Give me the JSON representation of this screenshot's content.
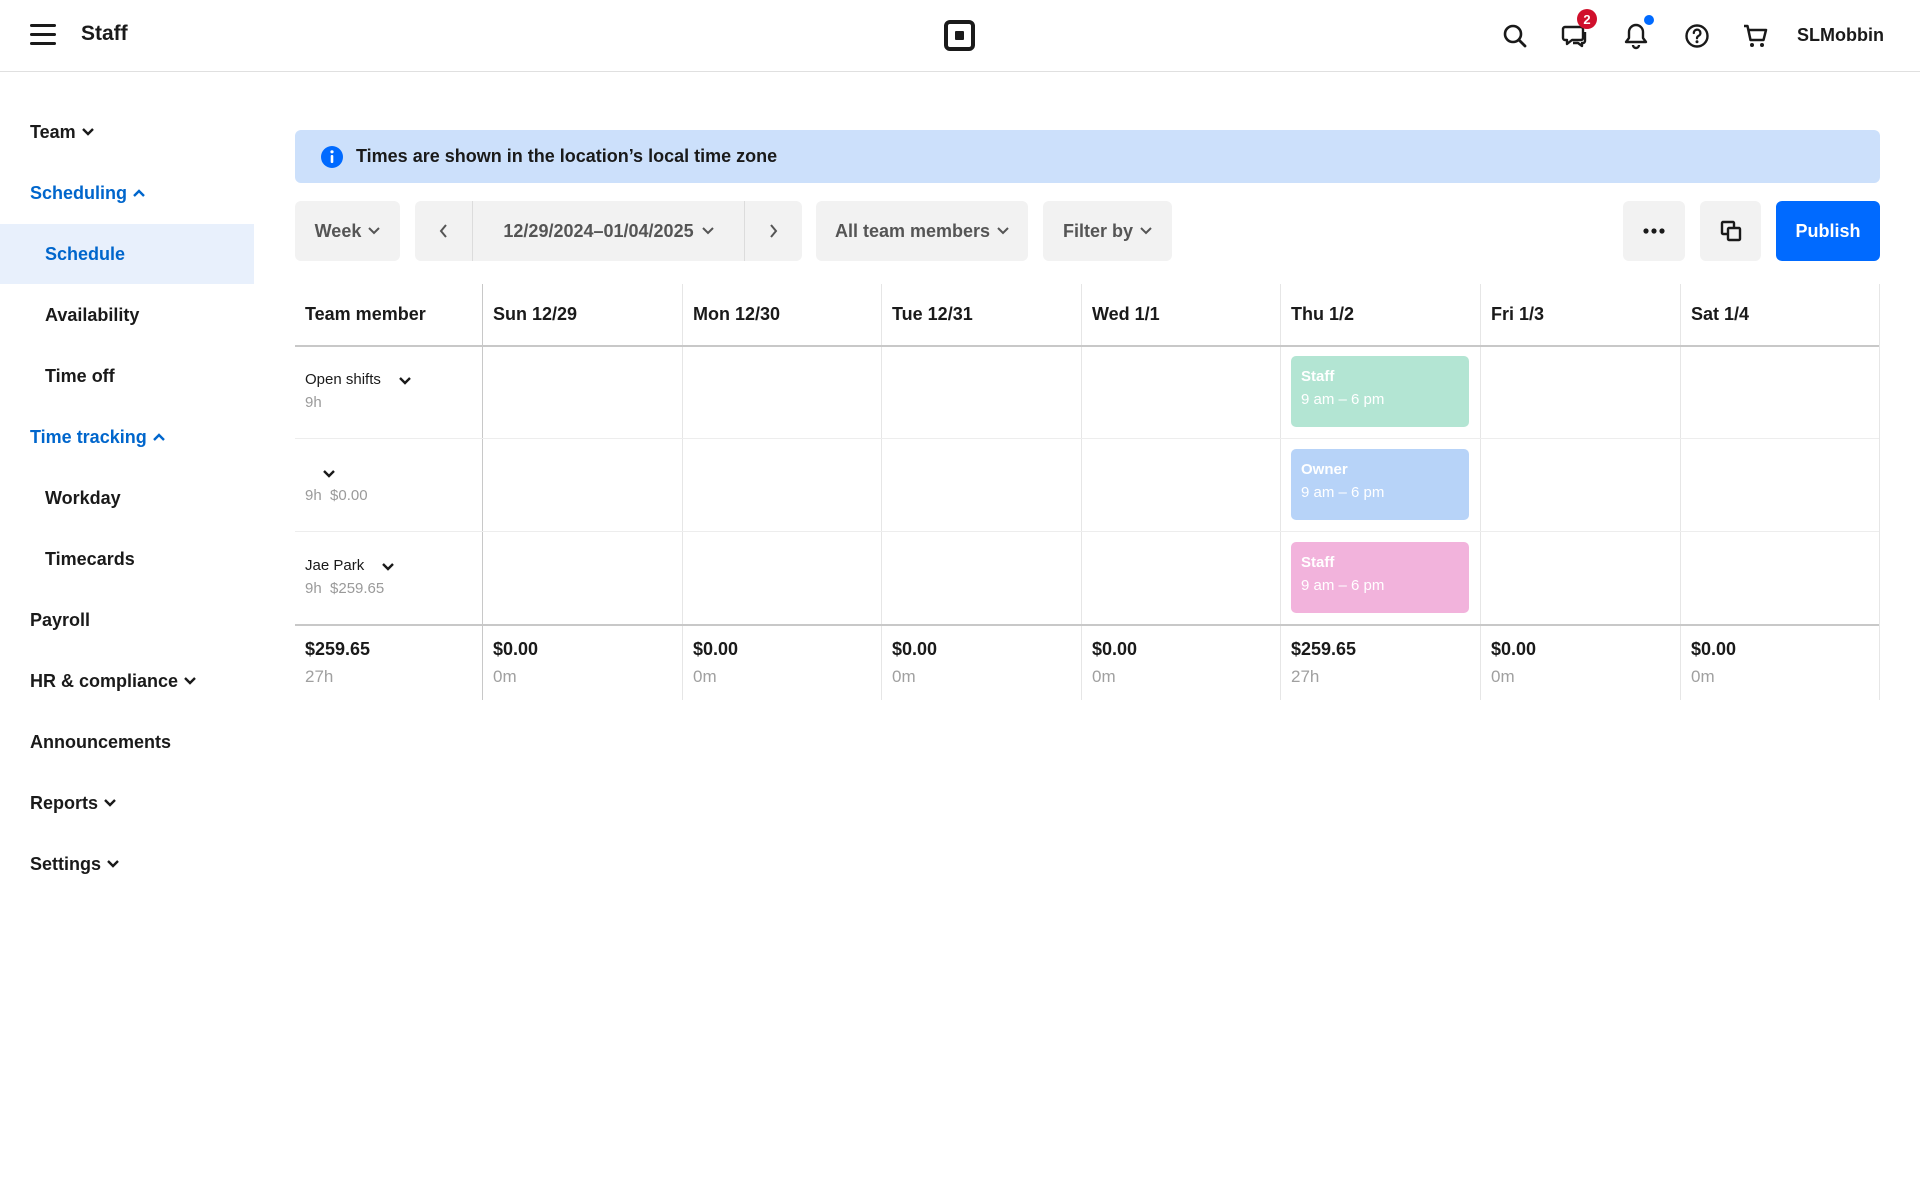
{
  "header": {
    "title": "Staff",
    "username": "SLMobbin",
    "icons": [
      "menu-icon",
      "square-logo-icon",
      "search-icon",
      "messages-icon",
      "bell-icon",
      "help-icon",
      "cart-icon"
    ],
    "messages_badge": "2"
  },
  "sidebar": {
    "items": [
      {
        "label": "Team",
        "kind": "top",
        "chevron": "down"
      },
      {
        "label": "Scheduling",
        "kind": "section-open",
        "chevron": "up"
      },
      {
        "label": "Schedule",
        "kind": "sub",
        "active": true
      },
      {
        "label": "Availability",
        "kind": "sub"
      },
      {
        "label": "Time off",
        "kind": "sub"
      },
      {
        "label": "Time tracking",
        "kind": "section-open",
        "chevron": "up"
      },
      {
        "label": "Workday",
        "kind": "sub"
      },
      {
        "label": "Timecards",
        "kind": "sub"
      },
      {
        "label": "Payroll",
        "kind": "top"
      },
      {
        "label": "HR & compliance",
        "kind": "top",
        "chevron": "down"
      },
      {
        "label": "Announcements",
        "kind": "top"
      },
      {
        "label": "Reports",
        "kind": "top",
        "chevron": "down"
      },
      {
        "label": "Settings",
        "kind": "top",
        "chevron": "down"
      }
    ]
  },
  "banner": {
    "text": "Times are shown in the location’s local time zone"
  },
  "toolbar": {
    "view_label": "Week",
    "date_range": "12/29/2024–01/04/2025",
    "members_filter": "All team members",
    "filter_label": "Filter by",
    "publish_label": "Publish"
  },
  "schedule": {
    "member_header": "Team member",
    "days": [
      "Sun 12/29",
      "Mon 12/30",
      "Tue 12/31",
      "Wed 1/1",
      "Thu 1/2",
      "Fri 1/3",
      "Sat 1/4"
    ],
    "rows": [
      {
        "name": "Open shifts",
        "sub": "9h"
      },
      {
        "name": "",
        "sub": "9h  $0.00"
      },
      {
        "name": "Jae Park",
        "sub": "9h  $259.65"
      }
    ],
    "shifts": [
      {
        "row": 0,
        "day": 4,
        "role": "Staff",
        "time": "9 am – 6 pm",
        "color": "#b3e5d3"
      },
      {
        "row": 1,
        "day": 4,
        "role": "Owner",
        "time": "9 am – 6 pm",
        "color": "#b7d3f8"
      },
      {
        "row": 2,
        "day": 4,
        "role": "Staff",
        "time": "9 am – 6 pm",
        "color": "#f2b3dc"
      }
    ],
    "totals": [
      {
        "amount": "$259.65",
        "hours": "27h"
      },
      {
        "amount": "$0.00",
        "hours": "0m"
      },
      {
        "amount": "$0.00",
        "hours": "0m"
      },
      {
        "amount": "$0.00",
        "hours": "0m"
      },
      {
        "amount": "$0.00",
        "hours": "0m"
      },
      {
        "amount": "$259.65",
        "hours": "27h"
      },
      {
        "amount": "$0.00",
        "hours": "0m"
      },
      {
        "amount": "$0.00",
        "hours": "0m"
      }
    ]
  },
  "colors": {
    "accent": "#006aff",
    "link": "#0066cc",
    "banner": "#cce0fb",
    "badge": "#d0102c"
  }
}
